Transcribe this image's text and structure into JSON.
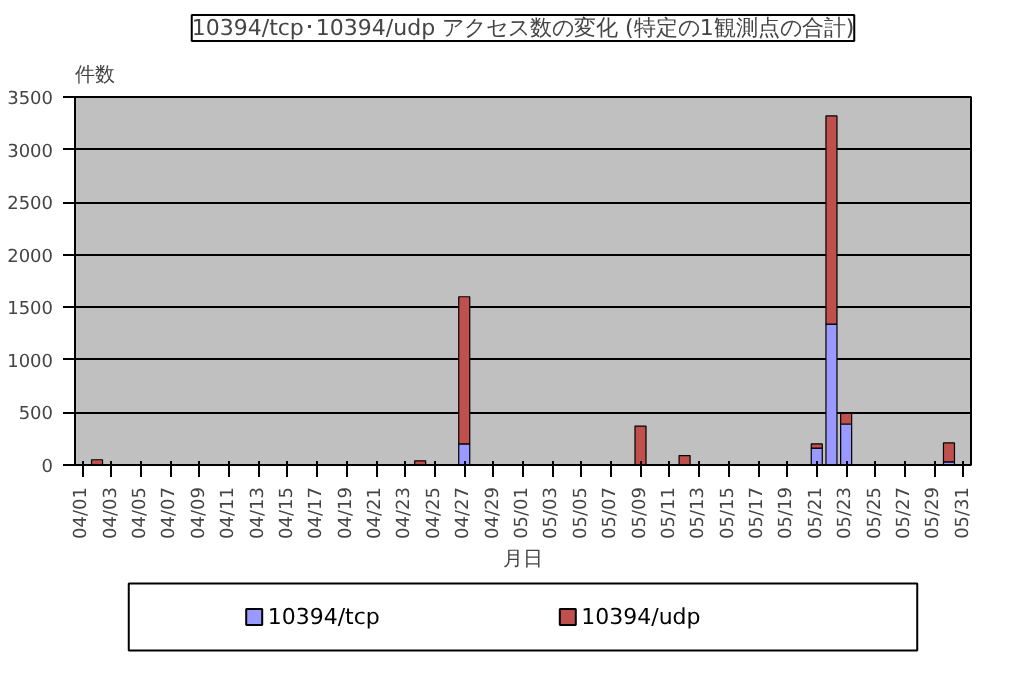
{
  "chart_data": {
    "type": "bar",
    "stacked": true,
    "title": "10394/tcp･10394/udp アクセス数の変化 (特定の1観測点の合計)",
    "xlabel": "月日",
    "ylabel": "件数",
    "categories": [
      "04/01",
      null,
      "04/03",
      null,
      "04/05",
      null,
      "04/07",
      null,
      "04/09",
      null,
      "04/11",
      null,
      "04/13",
      null,
      "04/15",
      null,
      "04/17",
      null,
      "04/19",
      null,
      "04/21",
      null,
      "04/23",
      null,
      "04/25",
      null,
      "04/27",
      null,
      "04/29",
      null,
      "05/01",
      null,
      "05/03",
      null,
      "05/05",
      null,
      "05/07",
      null,
      "05/09",
      null,
      "05/11",
      null,
      "05/13",
      null,
      "05/15",
      null,
      "05/17",
      null,
      "05/19",
      null,
      "05/21",
      null,
      "05/23",
      null,
      "05/25",
      null,
      "05/27",
      null,
      "05/29",
      null,
      "05/31"
    ],
    "series": [
      {
        "name": "10394/tcp",
        "color": "#9999ff",
        "values": [
          0,
          0,
          0,
          0,
          0,
          0,
          0,
          0,
          0,
          0,
          0,
          0,
          0,
          0,
          0,
          0,
          0,
          0,
          0,
          0,
          0,
          0,
          0,
          0,
          0,
          0,
          200,
          0,
          0,
          0,
          0,
          0,
          0,
          0,
          0,
          0,
          0,
          0,
          0,
          0,
          0,
          0,
          0,
          0,
          0,
          0,
          0,
          0,
          0,
          0,
          160,
          1340,
          390,
          0,
          0,
          0,
          0,
          0,
          0,
          30,
          0
        ]
      },
      {
        "name": "10394/udp",
        "color": "#c0504d",
        "values": [
          0,
          50,
          0,
          0,
          0,
          0,
          0,
          0,
          0,
          0,
          0,
          0,
          0,
          0,
          0,
          0,
          0,
          0,
          0,
          0,
          0,
          0,
          0,
          40,
          0,
          0,
          1400,
          0,
          0,
          0,
          0,
          0,
          0,
          0,
          0,
          0,
          0,
          0,
          370,
          0,
          0,
          90,
          0,
          0,
          0,
          0,
          0,
          0,
          0,
          0,
          40,
          1980,
          100,
          0,
          0,
          0,
          0,
          0,
          0,
          180,
          0
        ]
      }
    ],
    "ylim": [
      0,
      3500
    ],
    "yticks": [
      0,
      500,
      1000,
      1500,
      2000,
      2500,
      3000,
      3500
    ],
    "grid": "y",
    "legend": "bottom"
  }
}
